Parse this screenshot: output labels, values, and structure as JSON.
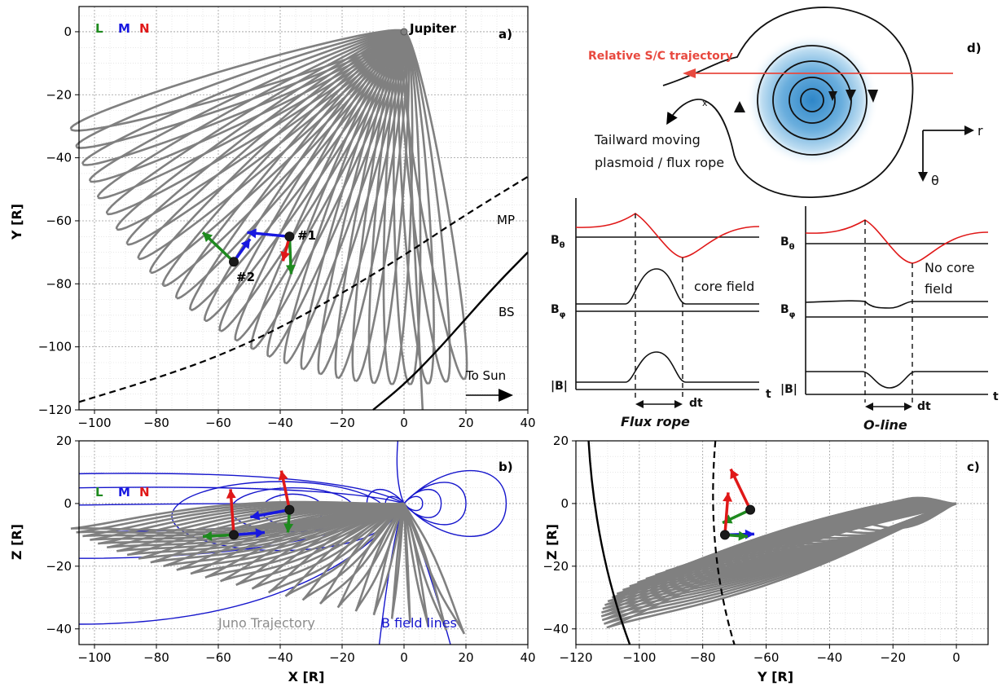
{
  "chart_data": [
    {
      "panel": "a)",
      "type": "line",
      "xlabel": "",
      "ylabel": "Y [R]",
      "xlim": [
        -105,
        40
      ],
      "ylim": [
        -120,
        8
      ],
      "xticks": [
        "−100",
        "−80",
        "−60",
        "−40",
        "−20",
        "0",
        "20",
        "40"
      ],
      "yticks": [
        "0",
        "−20",
        "−40",
        "−60",
        "−80",
        "−100",
        "−120"
      ],
      "grid": true,
      "legend_letters": [
        "L",
        "M",
        "N"
      ],
      "labels": {
        "jupiter": "Jupiter",
        "mp": "MP",
        "bs": "BS",
        "to_sun": "To Sun",
        "event1": "#1",
        "event2": "#2"
      },
      "series": [
        {
          "name": "Juno Trajectory",
          "color": "#808080",
          "orbit_apojove_angles_deg": [
            196,
            199,
            202,
            205,
            208,
            211,
            214,
            217,
            220,
            223,
            226,
            229,
            232,
            235,
            238,
            241,
            244,
            247,
            250,
            253,
            256,
            259,
            262,
            265,
            268,
            271,
            274,
            277,
            280
          ],
          "apojove_distance": 112
        },
        {
          "name": "MP",
          "color": "#000000",
          "style": "dashed",
          "points": [
            [
              -105,
              -117.5
            ],
            [
              -80,
              -110
            ],
            [
              -60,
              -103
            ],
            [
              -40,
              -94
            ],
            [
              -20,
              -83
            ],
            [
              0,
              -71
            ],
            [
              20,
              -58
            ],
            [
              40,
              -46
            ]
          ]
        },
        {
          "name": "BS",
          "color": "#000000",
          "style": "solid",
          "points": [
            [
              -10,
              -120
            ],
            [
              0,
              -112
            ],
            [
              10,
              -102
            ],
            [
              20,
              -91
            ],
            [
              30,
              -80
            ],
            [
              40,
              -70
            ]
          ]
        }
      ],
      "events": [
        {
          "id": "#1",
          "x": -37,
          "y": -65
        },
        {
          "id": "#2",
          "x": -55,
          "y": -73
        }
      ]
    },
    {
      "panel": "b)",
      "type": "line",
      "xlabel": "X [R]",
      "ylabel": "Z [R]",
      "xlim": [
        -105,
        40
      ],
      "ylim": [
        -45,
        20
      ],
      "xticks": [
        "−100",
        "−80",
        "−60",
        "−40",
        "−20",
        "0",
        "20",
        "40"
      ],
      "yticks": [
        "20",
        "0",
        "−20",
        "−40"
      ],
      "grid": true,
      "legend_letters": [
        "L",
        "M",
        "N"
      ],
      "series_labels": {
        "juno": "Juno Trajectory",
        "field": "B field lines"
      },
      "events": [
        {
          "id": "#1",
          "x": -37,
          "z": -2
        },
        {
          "id": "#2",
          "x": -55,
          "z": -10
        }
      ]
    },
    {
      "panel": "c)",
      "type": "line",
      "xlabel": "Y [R]",
      "ylabel": "Z [R]",
      "xlim": [
        -120,
        10
      ],
      "ylim": [
        -45,
        20
      ],
      "xticks": [
        "−120",
        "−100",
        "−80",
        "−60",
        "−40",
        "−20",
        "0"
      ],
      "yticks": [
        "20",
        "0",
        "−20",
        "−40"
      ],
      "grid": true,
      "events": [
        {
          "id": "#1",
          "y": -65,
          "z": -2
        },
        {
          "id": "#2",
          "y": -73,
          "z": -10
        }
      ]
    }
  ],
  "schematic": {
    "panel": "d)",
    "trajectory_label": "Relative S/C trajectory",
    "plasmoid_label_1": "Tailward moving",
    "plasmoid_label_2": "plasmoid / flux rope",
    "x_point": "x",
    "r_label": "r",
    "theta_label": "θ",
    "flux_rope": {
      "b_theta": "B",
      "b_theta_sub": "θ",
      "b_phi": "B",
      "b_phi_sub": "φ",
      "b_mag": "|B|",
      "core_note": "core field",
      "time_axis": "t",
      "dt": "dt",
      "title": "Flux rope"
    },
    "o_line": {
      "b_theta": "B",
      "b_theta_sub": "θ",
      "b_phi": "B",
      "b_phi_sub": "φ",
      "b_mag": "|B|",
      "core_note_1": "No core",
      "core_note_2": "field",
      "time_axis": "t",
      "dt": "dt",
      "title": "O-line"
    }
  },
  "colors": {
    "L": "#1e8a1e",
    "M": "#1818e0",
    "N": "#e01818",
    "trajectory": "#808080",
    "field_lines": "#1515cc",
    "schematic_red": "#e8493f"
  }
}
